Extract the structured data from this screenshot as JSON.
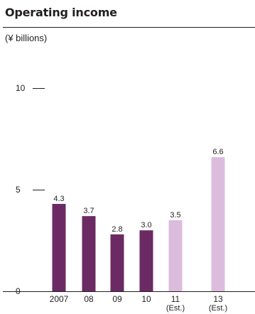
{
  "chart_data": {
    "type": "bar",
    "title": "Operating income",
    "unit": "(¥ billions)",
    "categories": [
      "2007",
      "08",
      "09",
      "10",
      "11",
      "13"
    ],
    "category_sublabels": [
      "",
      "",
      "",
      "",
      "(Est.)",
      "(Est.)"
    ],
    "values": [
      4.3,
      3.7,
      2.8,
      3.0,
      3.5,
      6.6
    ],
    "value_labels": [
      "4.3",
      "3.7",
      "2.8",
      "3.0",
      "3.5",
      "6.6"
    ],
    "estimated": [
      false,
      false,
      false,
      false,
      true,
      true
    ],
    "yticks": [
      "10",
      "5",
      "0"
    ],
    "ylim": [
      0,
      10
    ],
    "xlabel": "",
    "ylabel": "",
    "grid": false,
    "colors": {
      "actual": "#6b2a63",
      "estimate": "#dcbcdc",
      "text": "#231f20",
      "axis": "#231f20"
    }
  }
}
